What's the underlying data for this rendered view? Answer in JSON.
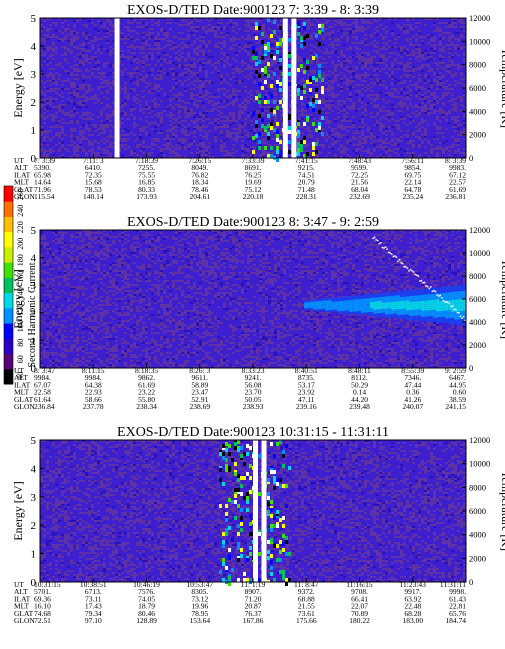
{
  "colors": {
    "background": "#3d1fd0",
    "noise": "#6a3a9a",
    "gap": "#ffffff",
    "colorbar": [
      "#000000",
      "#5a0078",
      "#2a00c8",
      "#0000ff",
      "#0090ff",
      "#00d8e8",
      "#00c060",
      "#40e000",
      "#c8f000",
      "#ffff00",
      "#ffc000",
      "#ff7000",
      "#ff0000"
    ]
  },
  "colorbar": {
    "label": "Second Harmonic Current",
    "ticks": [
      "40",
      "60",
      "80",
      "100",
      "120",
      "140",
      "160",
      "180",
      "200",
      "220",
      "240",
      "260"
    ]
  },
  "chart_data": [
    {
      "type": "heatmap",
      "title": "EXOS-D/TED   Date:900123  7: 3:39 - 8: 3:39",
      "ylabel": "Energy [eV]",
      "y2label": "Temperature [K]",
      "ylim": [
        0,
        5
      ],
      "y_ticks": [
        "0",
        "1",
        "2",
        "3",
        "4",
        "5"
      ],
      "y2lim": [
        0,
        12000
      ],
      "y2_ticks": [
        "0",
        "2000",
        "4000",
        "6000",
        "8000",
        "10000",
        "12000"
      ],
      "row_labels": [
        "UT",
        "ALT",
        "ILAT",
        "MLT",
        "GLAT",
        "GLON"
      ],
      "columns": [
        [
          "7: 3:39",
          "5390.",
          "65.98",
          "14.64",
          "71.96",
          "115.54"
        ],
        [
          "7:11: 3",
          "6410.",
          "72.35",
          "15.68",
          "78.53",
          "140.14"
        ],
        [
          "7:18:39",
          "7255.",
          "75.55",
          "16.85",
          "80.33",
          "173.93"
        ],
        [
          "7:26:15",
          "8049.",
          "76.82",
          "18.34",
          "78.46",
          "204.61"
        ],
        [
          "7:33:39",
          "8691.",
          "76.25",
          "19.69",
          "75.12",
          "220.18"
        ],
        [
          "7:41:15",
          "9215.",
          "74.51",
          "20.79",
          "71.48",
          "228.31"
        ],
        [
          "7:48:43",
          "9599.",
          "72.25",
          "21.56",
          "68.04",
          "232.69"
        ],
        [
          "7:56:11",
          "9854.",
          "69.75",
          "22.14",
          "64.78",
          "235.24"
        ],
        [
          "8: 3:39",
          "9983.",
          "67.12",
          "22.57",
          "61.69",
          "236.81"
        ]
      ],
      "features": {
        "gaps": [
          0.175,
          0.57,
          0.59
        ],
        "burst_center": 0.58,
        "band": null,
        "streak": false
      }
    },
    {
      "type": "heatmap",
      "title": "EXOS-D/TED   Date:900123  8: 3:47 - 9: 2:59",
      "ylabel": "Energy [eV]",
      "y2label": "Temperature [K]",
      "ylim": [
        0,
        5
      ],
      "y_ticks": [
        "0",
        "1",
        "2",
        "3",
        "4",
        "5"
      ],
      "y2lim": [
        0,
        12000
      ],
      "y2_ticks": [
        "0",
        "2000",
        "4000",
        "6000",
        "8000",
        "10000",
        "12000"
      ],
      "row_labels": [
        "UT",
        "ALT",
        "ILAT",
        "MLT",
        "GLAT",
        "GLON"
      ],
      "columns": [
        [
          "8: 3:47",
          "9984.",
          "67.07",
          "22.58",
          "61.64",
          "236.84"
        ],
        [
          "8:11:15",
          "9984.",
          "64.38",
          "22.93",
          "58.66",
          "237.78"
        ],
        [
          "8:18:35",
          "9862.",
          "61.69",
          "23.22",
          "55.80",
          "238.34"
        ],
        [
          "8:26: 3",
          "9611.",
          "58.89",
          "23.47",
          "52.91",
          "238.69"
        ],
        [
          "8:33:23",
          "9241.",
          "56.08",
          "23.70",
          "50.05",
          "238.93"
        ],
        [
          "8:40:51",
          "8735.",
          "53.17",
          "23.92",
          "47.11",
          "239.16"
        ],
        [
          "8:48:11",
          "8112.",
          "50.29",
          "0.14",
          "44.20",
          "239.48"
        ],
        [
          "8:55:39",
          "7346.",
          "47.44",
          "0.36",
          "41.26",
          "240.07"
        ],
        [
          "9: 2:59",
          "6467.",
          "44.95",
          "0.60",
          "38.59",
          "241.15"
        ]
      ],
      "features": {
        "gaps": [],
        "burst_center": null,
        "band": {
          "start": 0.62,
          "energy": 2.3
        },
        "streak": true
      }
    },
    {
      "type": "heatmap",
      "title": "EXOS-D/TED   Date:900123  10:31:15 - 11:31:11",
      "ylabel": "Energy [eV]",
      "y2label": "Temperature [K]",
      "ylim": [
        0,
        5
      ],
      "y_ticks": [
        "0",
        "1",
        "2",
        "3",
        "4",
        "5"
      ],
      "y2lim": [
        0,
        12000
      ],
      "y2_ticks": [
        "0",
        "2000",
        "4000",
        "6000",
        "8000",
        "10000",
        "12000"
      ],
      "row_labels": [
        "UT",
        "ALT",
        "ILAT",
        "MLT",
        "GLAT",
        "GLON"
      ],
      "columns": [
        [
          "10:31:15",
          "5701.",
          "69.36",
          "16.10",
          "74.68",
          "72.51"
        ],
        [
          "10:38:51",
          "6713.",
          "73.11",
          "17.43",
          "79.34",
          "97.10"
        ],
        [
          "10:46:19",
          "7576.",
          "74.05",
          "18.79",
          "80.46",
          "128.89"
        ],
        [
          "10:53:47",
          "8305.",
          "73.12",
          "19.96",
          "78.95",
          "153.64"
        ],
        [
          "11: 1:19",
          "8907.",
          "71.20",
          "20.87",
          "76.37",
          "167.86"
        ],
        [
          "11: 8:47",
          "9372.",
          "68.88",
          "21.55",
          "73.61",
          "175.66"
        ],
        [
          "11:16:15",
          "9708.",
          "66.41",
          "22.07",
          "70.89",
          "180.22"
        ],
        [
          "11:23:43",
          "9917.",
          "63.92",
          "22.48",
          "68.28",
          "183.00"
        ],
        [
          "11:31:11",
          "9998.",
          "61.43",
          "22.81",
          "65.76",
          "184.74"
        ]
      ],
      "features": {
        "gaps": [
          0.5,
          0.52
        ],
        "burst_center": 0.5,
        "band": null,
        "streak": false
      }
    }
  ]
}
